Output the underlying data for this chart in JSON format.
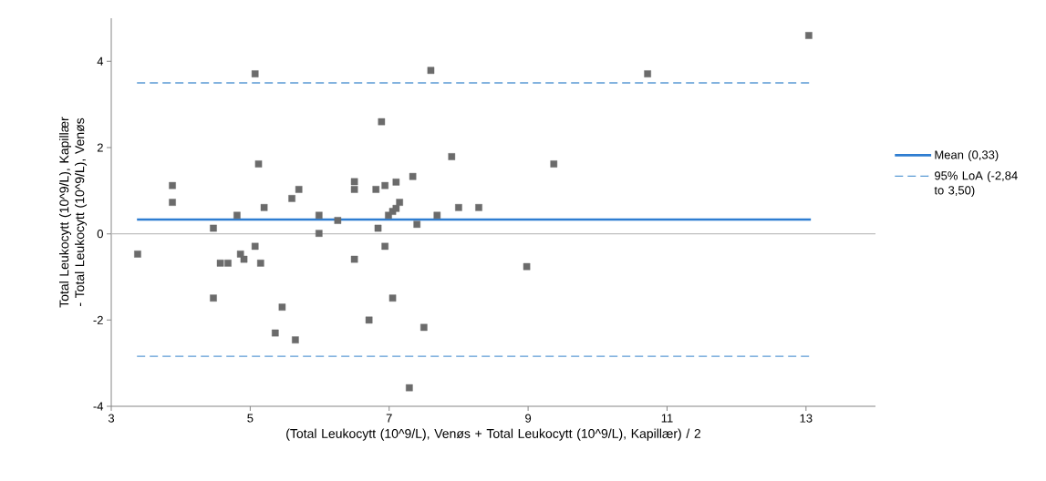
{
  "chart_data": {
    "type": "scatter",
    "xlabel": "(Total Leukocytt (10^9/L), Venøs + Total Leukocytt (10^9/L), Kapillær) / 2",
    "ylabel": "Total Leukocytt (10^9/L), Kapillær - Total Leukocytt (10^9/L), Venøs",
    "xlim": [
      3,
      14
    ],
    "xticks": [
      3,
      5,
      7,
      9,
      11,
      13
    ],
    "ylim": [
      -4,
      5
    ],
    "yticks": [
      -4,
      -2,
      0,
      2,
      4
    ],
    "grid": false,
    "legend": "right",
    "ref_lines": [
      {
        "axis": "y",
        "value": 0,
        "color": "#bfbfbf"
      }
    ],
    "series": [
      {
        "color": "#6b6b6b",
        "marker": "square",
        "x": [
          3.38,
          3.88,
          3.88,
          4.47,
          4.47,
          4.57,
          4.68,
          4.81,
          4.86,
          4.91,
          5.07,
          5.07,
          5.12,
          5.15,
          5.2,
          5.36,
          5.46,
          5.6,
          5.65,
          5.7,
          5.99,
          5.99,
          6.26,
          6.5,
          6.5,
          6.5,
          6.71,
          6.81,
          6.84,
          6.89,
          6.94,
          6.94,
          6.99,
          7.05,
          7.1,
          7.15,
          7.1,
          7.05,
          7.34,
          7.4,
          7.6,
          7.5,
          7.29,
          7.69,
          7.9,
          8.0,
          8.29,
          8.98,
          9.37,
          10.72,
          13.04
        ],
        "values": [
          -0.47,
          1.12,
          0.73,
          0.13,
          -1.49,
          -0.68,
          -0.68,
          0.43,
          -0.47,
          -0.59,
          3.71,
          -0.29,
          1.62,
          -0.68,
          0.61,
          -2.3,
          -1.7,
          0.82,
          -2.46,
          1.03,
          0.43,
          0.01,
          0.31,
          1.21,
          1.03,
          -0.59,
          -2.0,
          1.03,
          0.13,
          2.6,
          1.12,
          -0.29,
          0.43,
          0.52,
          0.59,
          0.73,
          1.2,
          -1.49,
          1.33,
          0.22,
          3.79,
          -2.17,
          -3.57,
          0.43,
          1.79,
          0.61,
          0.61,
          -0.76,
          1.62,
          3.71,
          4.6
        ]
      },
      {
        "type": "line",
        "name": "Mean (0,33)",
        "color": "#2e7dd1",
        "line_style": "solid",
        "marker": "none",
        "x": [
          3.37,
          13.07
        ],
        "values": [
          0.33,
          0.33
        ]
      },
      {
        "type": "line",
        "name": "95% LoA (-2,84 to 3,50)",
        "color": "#5b9bd5",
        "line_style": "dashed",
        "marker": "none",
        "x": [
          3.37,
          13.07
        ],
        "values": [
          3.5,
          3.5
        ]
      },
      {
        "type": "line",
        "color": "#5b9bd5",
        "line_style": "dashed",
        "marker": "none",
        "x": [
          3.37,
          13.07
        ],
        "values": [
          -2.84,
          -2.84
        ]
      }
    ]
  }
}
